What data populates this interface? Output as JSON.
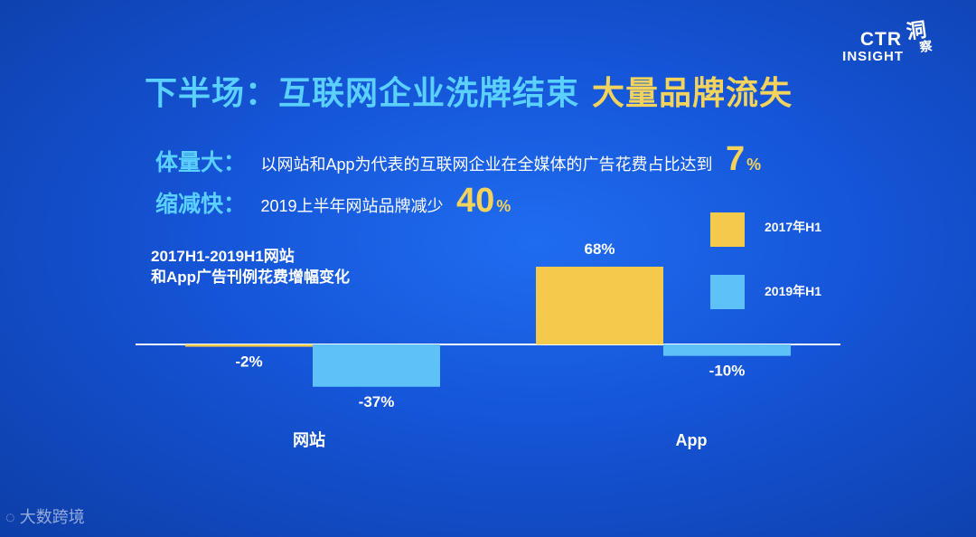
{
  "logo": {
    "brand": "CTR",
    "insight": "INSIGHT",
    "seal_top": "洞",
    "seal_bottom": "察"
  },
  "title": {
    "part1": "下半场：互联网企业洗牌结束",
    "part2": "大量品牌流失"
  },
  "facts": [
    {
      "key": "体量大：",
      "desc": "以网站和App为代表的互联网企业在全媒体的广告花费占比达到",
      "value": "7",
      "unit": "%"
    },
    {
      "key": "缩减快：",
      "desc": "2019上半年网站品牌减少",
      "value": "40",
      "unit": "%"
    }
  ],
  "watermark": "大数跨境",
  "colors": {
    "series_2017": "#f3ca4c",
    "series_2019": "#5ec1f7",
    "axis": "#ffffff",
    "accent_blue": "#5ad0ff",
    "accent_yellow": "#f3d35c"
  },
  "chart_data": {
    "type": "bar",
    "title": "2017H1-2019H1网站\n和App广告刊例花费增幅变化",
    "categories": [
      "网站",
      "App"
    ],
    "series": [
      {
        "name": "2017年H1",
        "values": [
          -2,
          68
        ],
        "labels": [
          "-2%",
          "68%"
        ]
      },
      {
        "name": "2019年H1",
        "values": [
          -37,
          -10
        ],
        "labels": [
          "-37%",
          "-10%"
        ]
      }
    ],
    "unit": "%",
    "legend_position": "top-right",
    "grid": false
  }
}
